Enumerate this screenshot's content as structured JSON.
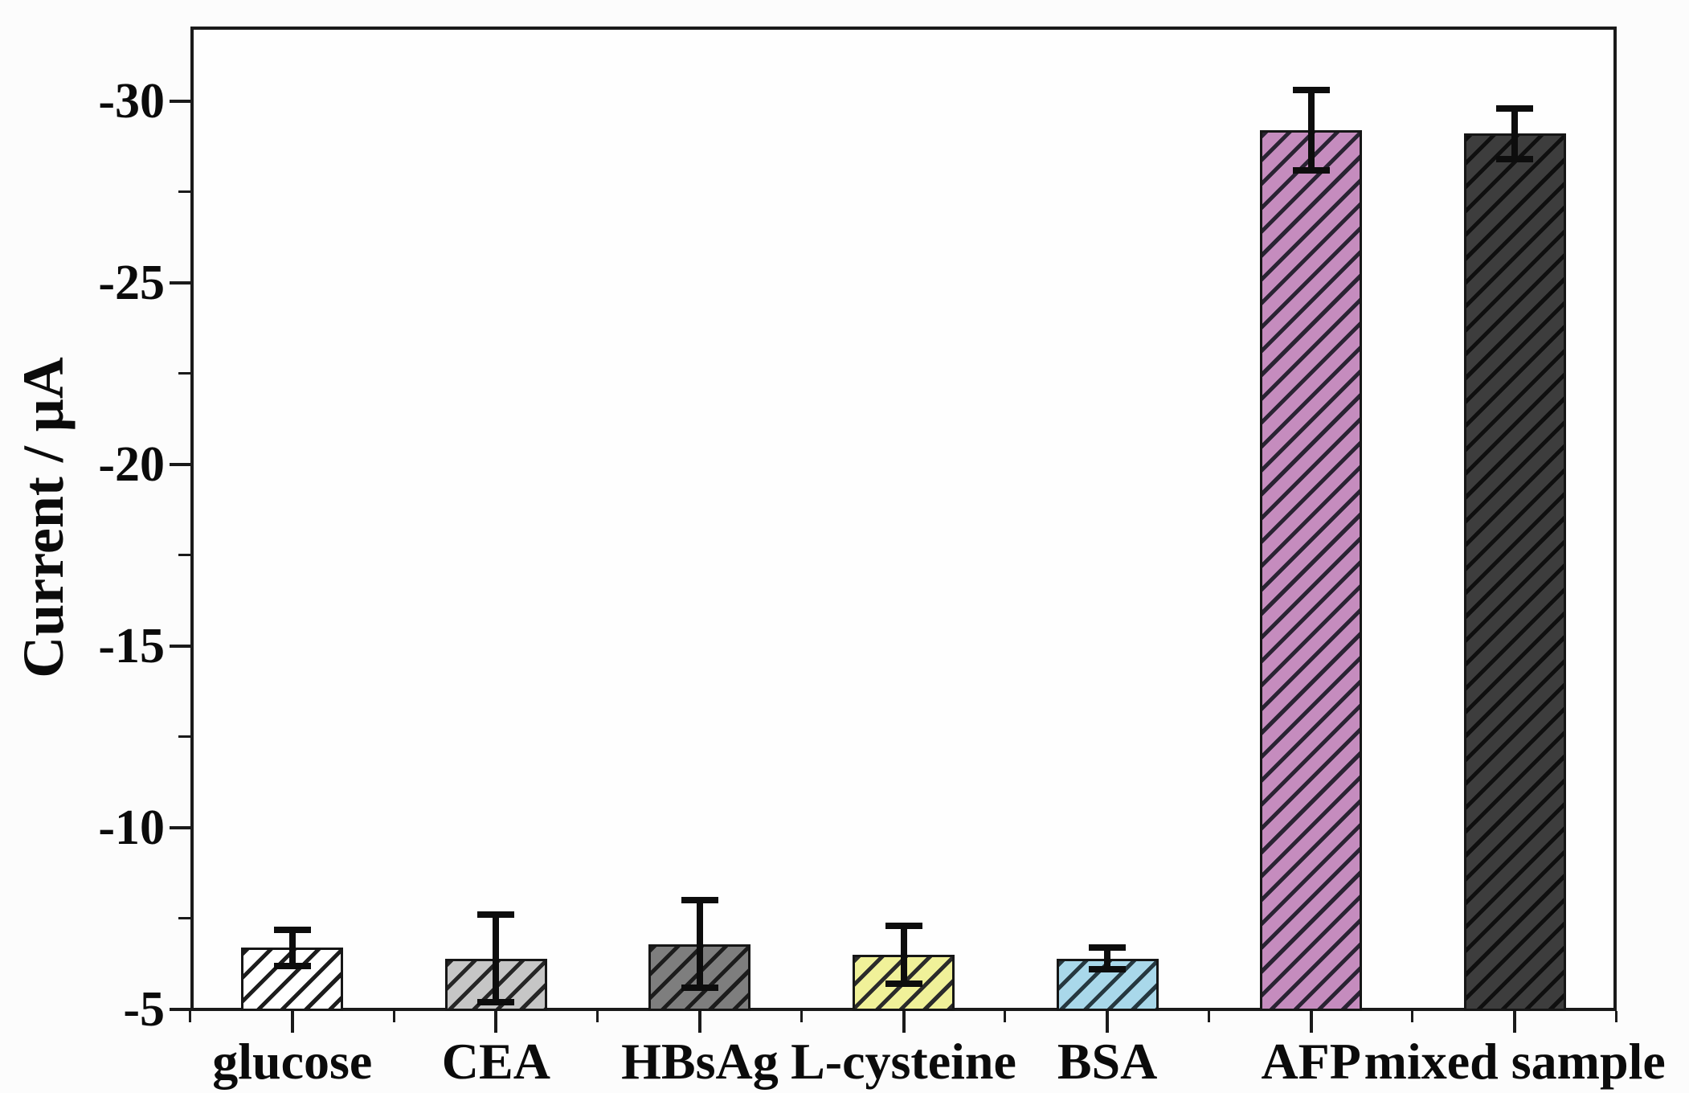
{
  "chart_data": {
    "type": "bar",
    "title": "",
    "xlabel": "",
    "ylabel": "Current / μA",
    "categories": [
      "glucose",
      "CEA",
      "HBsAg",
      "L-cysteine",
      "BSA",
      "AFP",
      "mixed sample"
    ],
    "values": [
      -6.7,
      -6.4,
      -6.8,
      -6.5,
      -6.4,
      -29.2,
      -29.1
    ],
    "errors": [
      0.5,
      1.2,
      1.2,
      0.8,
      0.3,
      1.1,
      0.7
    ],
    "bar_fill_colors": [
      "#ffffff",
      "#c6c6c6",
      "#7e7e7e",
      "#f0f199",
      "#a9d8ea",
      "#c58cbe",
      "#3d3d3d"
    ],
    "bar_hatch_colors": [
      "#1d1d1d",
      "#262626",
      "#1c1c1c",
      "#2b2b2b",
      "#263840",
      "#2a2333",
      "#0f0f0f"
    ],
    "hatch_pattern": "diagonal-45",
    "bar_outline_color": "#161616",
    "error_bar_color": "#0d0d0d",
    "axis_color": "#1a1a1a",
    "grid": false,
    "legend": "none",
    "y_axis": {
      "major_ticks": [
        -5,
        -10,
        -15,
        -20,
        -25,
        -30
      ],
      "minor_ticks": [
        -7.5,
        -12.5,
        -17.5,
        -22.5,
        -27.5
      ],
      "range": [
        -5,
        -32.05
      ],
      "direction": "magnitude-increases-upward"
    }
  }
}
